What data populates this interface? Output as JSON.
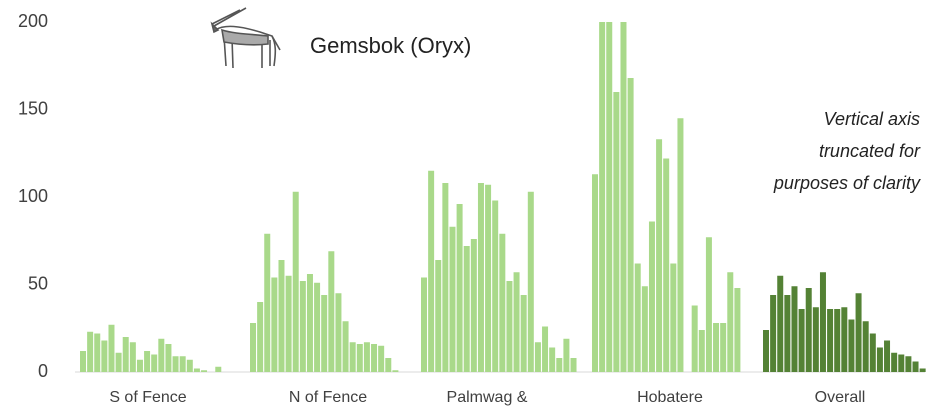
{
  "chart_data": {
    "type": "bar",
    "title": "Gemsbok (Oryx)",
    "annotation": [
      "Vertical axis",
      "truncated for",
      "purposes of clarity"
    ],
    "ylim": [
      0,
      200
    ],
    "yticks": [
      0,
      50,
      100,
      150,
      200
    ],
    "groups": [
      {
        "name": "S of Fence",
        "color": "#a9d98a",
        "values": [
          12,
          23,
          22,
          18,
          27,
          11,
          20,
          17,
          7,
          12,
          10,
          19,
          16,
          9,
          9,
          7,
          2,
          1,
          0,
          3
        ]
      },
      {
        "name": "N of Fence",
        "color": "#a9d98a",
        "values": [
          28,
          40,
          79,
          54,
          64,
          55,
          103,
          52,
          56,
          51,
          44,
          69,
          45,
          29,
          17,
          16,
          17,
          16,
          15,
          8,
          1
        ]
      },
      {
        "name": "Palmwag &",
        "color": "#a9d98a",
        "values": [
          54,
          115,
          64,
          108,
          83,
          96,
          72,
          76,
          108,
          107,
          98,
          79,
          52,
          57,
          44,
          103,
          17,
          26,
          14,
          8,
          19,
          8
        ]
      },
      {
        "name": "Hobatere",
        "color": "#a9d98a",
        "values": [
          113,
          200,
          200,
          160,
          200,
          168,
          62,
          49,
          86,
          133,
          122,
          62,
          145,
          0,
          38,
          24,
          77,
          28,
          28,
          57,
          48
        ]
      },
      {
        "name": "Overall",
        "color": "#548235",
        "values": [
          24,
          44,
          55,
          44,
          49,
          36,
          48,
          37,
          57,
          36,
          36,
          37,
          30,
          45,
          29,
          22,
          14,
          18,
          11,
          10,
          9,
          6,
          2
        ]
      }
    ]
  }
}
